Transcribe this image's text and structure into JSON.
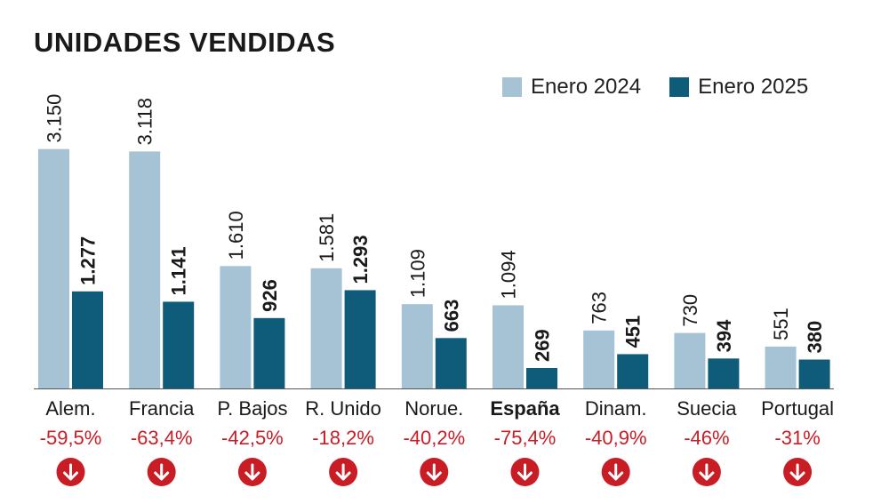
{
  "chart_data": {
    "type": "bar",
    "title": "UNIDADES VENDIDAS",
    "categories": [
      "Alem.",
      "Francia",
      "P. Bajos",
      "R. Unido",
      "Norue.",
      "España",
      "Dinam.",
      "Suecia",
      "Portugal"
    ],
    "series": [
      {
        "name": "Enero 2024",
        "color": "#a5c3d5",
        "values": [
          3150,
          3118,
          1610,
          1581,
          1109,
          1094,
          763,
          730,
          551
        ],
        "labels": [
          "3.150",
          "3.118",
          "1.610",
          "1.581",
          "1.109",
          "1.094",
          "763",
          "730",
          "551"
        ]
      },
      {
        "name": "Enero 2025",
        "color": "#0e5b7a",
        "values": [
          1277,
          1141,
          926,
          1293,
          663,
          269,
          451,
          394,
          380
        ],
        "labels": [
          "1.277",
          "1.141",
          "926",
          "1.293",
          "663",
          "269",
          "451",
          "394",
          "380"
        ]
      }
    ],
    "changes": [
      "-59,5%",
      "-63,4%",
      "-42,5%",
      "-18,2%",
      "-40,2%",
      "-75,4%",
      "-40,9%",
      "-46%",
      "-31%"
    ],
    "highlight_category": "España",
    "change_color": "#c81d25",
    "change_icon": "arrow-down-circle-icon",
    "legend_position": "top-right",
    "grid": false,
    "ylim": [
      0,
      3200
    ]
  }
}
